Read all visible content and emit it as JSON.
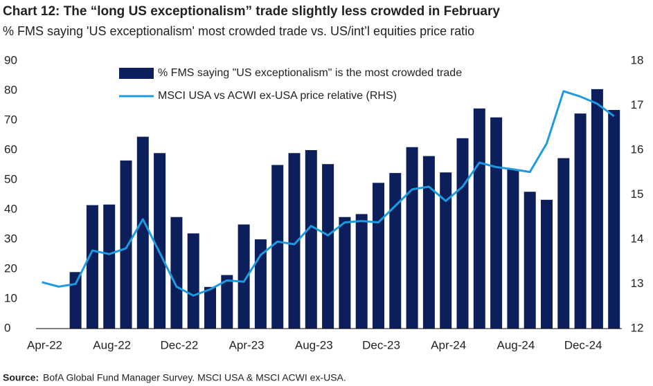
{
  "chart_data": {
    "type": "bar_line",
    "title": "Chart 12: The “long US exceptionalism” trade slightly less crowded in February",
    "subtitle": "% FMS saying 'US exceptionalism' most crowded trade vs. US/int’l equities price ratio",
    "source_label": "Source:",
    "source": "BofA Global Fund Manager Survey. MSCI USA & MSCI ACWI ex-USA.",
    "categories": [
      "Apr-22",
      null,
      null,
      null,
      "Aug-22",
      null,
      null,
      null,
      "Dec-22",
      null,
      null,
      null,
      "Apr-23",
      null,
      null,
      null,
      "Aug-23",
      null,
      null,
      null,
      "Dec-23",
      null,
      null,
      null,
      "Apr-24",
      null,
      null,
      null,
      "Aug-24",
      null,
      null,
      null,
      "Dec-24",
      null,
      null
    ],
    "series": [
      {
        "name": "% FMS saying \"US exceptionalism\" is the most crowded trade",
        "color": "#0c1f5b",
        "type": "bar",
        "values": [
          null,
          null,
          19,
          41.5,
          41.7,
          56.5,
          64.5,
          59,
          37.5,
          32,
          14,
          18,
          35,
          30,
          55,
          59,
          60,
          55.3,
          37.5,
          38.5,
          49,
          52.3,
          61,
          58,
          52.5,
          64,
          74,
          71,
          53.5,
          46,
          43.3,
          57.3,
          72.3,
          80.5,
          73.5
        ]
      },
      {
        "name": "MSCI USA vs ACWI ex-USA price relative (RHS)",
        "color": "#1e9be0",
        "type": "line",
        "axis": "y2",
        "values": [
          13.04,
          12.94,
          13.0,
          13.75,
          13.67,
          13.8,
          14.45,
          13.7,
          12.94,
          12.74,
          12.88,
          13.08,
          13.05,
          13.65,
          13.95,
          13.89,
          14.3,
          14.09,
          14.38,
          14.41,
          14.38,
          14.75,
          15.12,
          15.18,
          14.86,
          15.18,
          15.72,
          15.62,
          15.57,
          15.51,
          16.15,
          17.32,
          17.2,
          17.04,
          16.76
        ]
      }
    ],
    "ylim": [
      0,
      90
    ],
    "yticks": [
      0,
      10,
      20,
      30,
      40,
      50,
      60,
      70,
      80,
      90
    ],
    "y2lim": [
      12,
      18
    ],
    "y2ticks": [
      12,
      13,
      14,
      15,
      16,
      17,
      18
    ],
    "grid": false
  }
}
